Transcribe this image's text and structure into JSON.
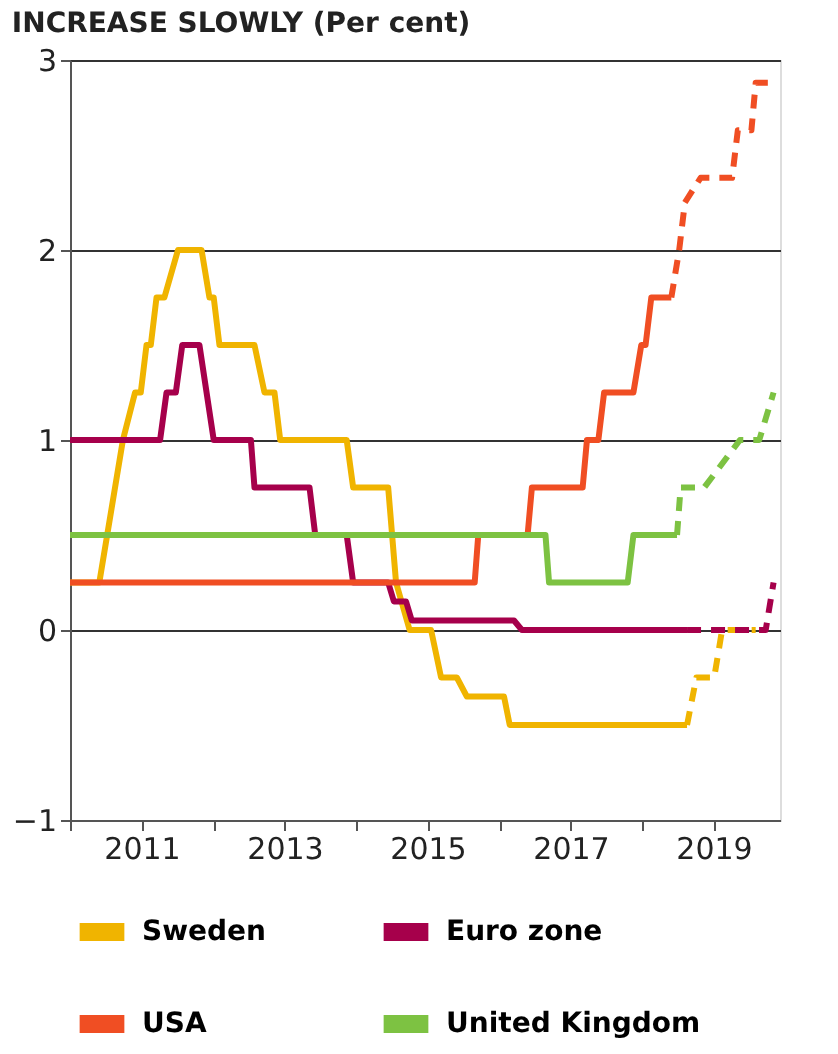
{
  "chart_data": {
    "type": "line",
    "title": "INCREASE SLOWLY (Per cent)",
    "xlim": [
      2010,
      2019.93
    ],
    "xticks": [
      {
        "value": 2010,
        "label": null
      },
      2011,
      {
        "value": 2012,
        "label": null
      },
      2013,
      {
        "value": 2014,
        "label": null
      },
      2015,
      {
        "value": 2016,
        "label": null
      },
      2017,
      {
        "value": 2018,
        "label": null
      },
      2019
    ],
    "ylim": [
      -1,
      3
    ],
    "yticks": [
      {
        "value": -1,
        "label": "−1"
      },
      0,
      1,
      2,
      3
    ],
    "grid": "y",
    "legend": "bottom",
    "line_style": "solid",
    "series": [
      {
        "name": "Sweden",
        "color": "#f0b400",
        "x": [
          2010.0,
          2010.41,
          2010.74,
          2010.91,
          2010.99,
          2011.07,
          2011.13,
          2011.21,
          2011.32,
          2011.51,
          2011.84,
          2011.95,
          2012.01,
          2012.09,
          2012.58,
          2012.72,
          2012.86,
          2012.94,
          2013.87,
          2013.96,
          2014.45,
          2014.56,
          2014.75,
          2015.05,
          2015.19,
          2015.41,
          2015.55,
          2016.07,
          2016.15,
          2018.63
        ],
        "values": [
          0.25,
          0.25,
          1.0,
          1.25,
          1.25,
          1.5,
          1.5,
          1.75,
          1.75,
          2.0,
          2.0,
          1.75,
          1.75,
          1.5,
          1.5,
          1.25,
          1.25,
          1.0,
          1.0,
          0.75,
          0.75,
          0.25,
          0,
          0,
          -0.25,
          -0.25,
          -0.35,
          -0.35,
          -0.5,
          -0.5
        ]
      },
      {
        "name": "Euro zone",
        "color": "#a6004b",
        "x": [
          2010.0,
          2011.26,
          2011.35,
          2011.48,
          2011.57,
          2011.81,
          2012.01,
          2012.53,
          2012.58,
          2013.35,
          2013.43,
          2013.87,
          2013.96,
          2014.45,
          2014.53,
          2014.7,
          2014.78,
          2016.21,
          2016.32,
          2018.63
        ],
        "values": [
          1.0,
          1.0,
          1.25,
          1.25,
          1.5,
          1.5,
          1.0,
          1.0,
          0.75,
          0.75,
          0.5,
          0.5,
          0.25,
          0.25,
          0.15,
          0.15,
          0.05,
          0.05,
          0,
          0
        ]
      },
      {
        "name": "USA",
        "color": "#f04e23",
        "x": [
          2010.0,
          2015.66,
          2015.71,
          2016.4,
          2016.46,
          2017.17,
          2017.23,
          2017.39,
          2017.47,
          2017.88,
          2017.99,
          2018.05,
          2018.13,
          2018.41
        ],
        "values": [
          0.25,
          0.25,
          0.5,
          0.5,
          0.75,
          0.75,
          1.0,
          1.0,
          1.25,
          1.25,
          1.5,
          1.5,
          1.75,
          1.75
        ]
      },
      {
        "name": "United Kingdom",
        "color": "#7dc242",
        "x": [
          2010.0,
          2016.65,
          2016.7,
          2017.8,
          2017.88,
          2018.49
        ],
        "values": [
          0.5,
          0.5,
          0.25,
          0.25,
          0.5,
          0.5
        ]
      },
      {
        "color": "#f0b400",
        "line_style": "dashed",
        "x": [
          2018.63,
          2018.76,
          2019.01,
          2019.12,
          2019.59
        ],
        "values": [
          -0.5,
          -0.25,
          -0.25,
          0,
          0
        ]
      },
      {
        "color": "#a6004b",
        "line_style": "dashed",
        "x": [
          2018.63,
          2019.73,
          2019.84
        ],
        "values": [
          0,
          0,
          0.25
        ]
      },
      {
        "color": "#f04e23",
        "line_style": "dashed",
        "x": [
          2018.41,
          2018.52,
          2018.6,
          2018.82,
          2019.26,
          2019.34,
          2019.53,
          2019.59,
          2019.81
        ],
        "values": [
          1.75,
          2.0,
          2.25,
          2.38,
          2.38,
          2.63,
          2.63,
          2.88,
          2.88
        ]
      },
      {
        "color": "#7dc242",
        "line_style": "dashed",
        "x": [
          2018.49,
          2018.54,
          2018.87,
          2019.37,
          2019.64,
          2019.84
        ],
        "values": [
          0.5,
          0.75,
          0.75,
          1.0,
          1.0,
          1.25
        ]
      }
    ]
  }
}
